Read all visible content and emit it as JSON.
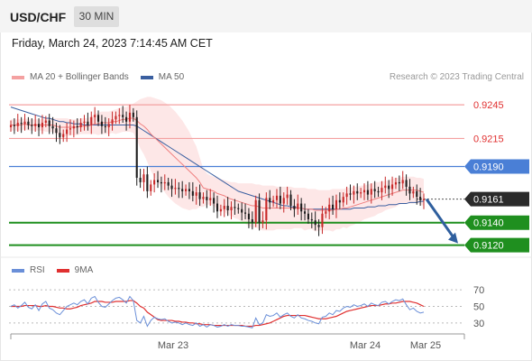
{
  "header": {
    "symbol": "USD/CHF",
    "timeframe": "30 MIN"
  },
  "datetime": "Friday, March 24, 2023 7:14:45 AM CET",
  "legend": {
    "ma_bollinger": "MA 20 + Bollinger Bands",
    "ma50": "MA 50",
    "credit": "Research © 2023 Trading Central"
  },
  "rsi_legend": {
    "rsi": "RSI",
    "ma9": "9MA"
  },
  "colors": {
    "resistance": "#f4a1a1",
    "pivot": "#4a7fd6",
    "support": "#1f8f1f",
    "current": "#2b2b2b",
    "arrow": "#2f5f9e",
    "bollinger_fill": "#fde3e3",
    "ma20": "#f08080",
    "ma50": "#3a5fa0",
    "rsi": "#6a8fd8",
    "rsi_ma": "#e03030"
  },
  "chart_data": [
    {
      "type": "candlestick",
      "title": "USD/CHF",
      "x_labels": [
        "Mar 23",
        "Mar 24",
        "Mar 25"
      ],
      "ylim": [
        0.911,
        0.9262
      ],
      "levels": [
        {
          "value": 0.9245,
          "label": "0.9245",
          "kind": "resistance"
        },
        {
          "value": 0.9215,
          "label": "0.9215",
          "kind": "resistance"
        },
        {
          "value": 0.919,
          "label": "0.9190",
          "kind": "pivot"
        },
        {
          "value": 0.9161,
          "label": "0.9161",
          "kind": "current"
        },
        {
          "value": 0.914,
          "label": "0.9140",
          "kind": "support"
        },
        {
          "value": 0.912,
          "label": "0.9120",
          "kind": "support"
        }
      ],
      "close": [
        0.9227,
        0.9226,
        0.9229,
        0.9228,
        0.923,
        0.9227,
        0.9226,
        0.9228,
        0.9225,
        0.9229,
        0.9231,
        0.9226,
        0.9224,
        0.922,
        0.9216,
        0.9219,
        0.9223,
        0.9224,
        0.9226,
        0.9225,
        0.9229,
        0.923,
        0.9227,
        0.9234,
        0.9236,
        0.923,
        0.9226,
        0.9225,
        0.9228,
        0.9232,
        0.9235,
        0.9236,
        0.9234,
        0.923,
        0.9238,
        0.9234,
        0.918,
        0.9176,
        0.9183,
        0.9168,
        0.9174,
        0.9178,
        0.9176,
        0.9175,
        0.9176,
        0.9173,
        0.917,
        0.9171,
        0.917,
        0.9168,
        0.917,
        0.9168,
        0.9164,
        0.9167,
        0.9161,
        0.9163,
        0.916,
        0.9162,
        0.9157,
        0.915,
        0.9152,
        0.9155,
        0.9151,
        0.9154,
        0.9153,
        0.9152,
        0.9149,
        0.9148,
        0.9143,
        0.914,
        0.916,
        0.914,
        0.9142,
        0.9162,
        0.9158,
        0.916,
        0.9164,
        0.9157,
        0.9162,
        0.9165,
        0.9155,
        0.9152,
        0.9157,
        0.915,
        0.9148,
        0.9143,
        0.9142,
        0.9138,
        0.9136,
        0.9148,
        0.915,
        0.9156,
        0.9152,
        0.916,
        0.9158,
        0.9163,
        0.9166,
        0.9165,
        0.9168,
        0.9166,
        0.9167,
        0.9169,
        0.9165,
        0.917,
        0.9168,
        0.9167,
        0.9171,
        0.9173,
        0.917,
        0.9174,
        0.9176,
        0.9175,
        0.9178,
        0.9172,
        0.9166,
        0.9168,
        0.9163,
        0.916,
        0.9161
      ],
      "ma20": [
        0.9227,
        0.9227,
        0.9227,
        0.9227,
        0.9228,
        0.9227,
        0.9227,
        0.9227,
        0.9227,
        0.9227,
        0.9227,
        0.9227,
        0.9227,
        0.9226,
        0.9225,
        0.9225,
        0.9225,
        0.9225,
        0.9225,
        0.9225,
        0.9226,
        0.9226,
        0.9226,
        0.9227,
        0.9228,
        0.9228,
        0.9229,
        0.9229,
        0.9229,
        0.923,
        0.923,
        0.9231,
        0.9232,
        0.9232,
        0.9233,
        0.9233,
        0.9231,
        0.9228,
        0.9226,
        0.9223,
        0.9219,
        0.9216,
        0.9213,
        0.921,
        0.9207,
        0.9204,
        0.9201,
        0.9198,
        0.9195,
        0.9192,
        0.9189,
        0.9186,
        0.9183,
        0.918,
        0.9176,
        0.9171,
        0.917,
        0.9169,
        0.9168,
        0.9166,
        0.9165,
        0.9164,
        0.9162,
        0.9161,
        0.916,
        0.9159,
        0.9158,
        0.9157,
        0.9156,
        0.9155,
        0.9155,
        0.9154,
        0.9153,
        0.9153,
        0.9153,
        0.9153,
        0.9153,
        0.9153,
        0.9153,
        0.9153,
        0.9153,
        0.9153,
        0.9153,
        0.9153,
        0.9152,
        0.9152,
        0.9152,
        0.9151,
        0.9151,
        0.9151,
        0.9151,
        0.9151,
        0.9151,
        0.9152,
        0.9152,
        0.9153,
        0.9153,
        0.9154,
        0.9155,
        0.9156,
        0.9157,
        0.9158,
        0.9159,
        0.916,
        0.9161,
        0.9162,
        0.9163,
        0.9164,
        0.9165,
        0.9166,
        0.9167,
        0.9168,
        0.9169,
        0.9169,
        0.9169,
        0.9169,
        0.9169,
        0.9168,
        0.9167
      ],
      "ma50": [
        0.9243,
        0.9242,
        0.9241,
        0.924,
        0.9239,
        0.9238,
        0.9237,
        0.9236,
        0.9235,
        0.9234,
        0.9233,
        0.9233,
        0.9232,
        0.9231,
        0.923,
        0.923,
        0.9229,
        0.9229,
        0.9228,
        0.9228,
        0.9228,
        0.9227,
        0.9227,
        0.9227,
        0.9227,
        0.9227,
        0.9227,
        0.9227,
        0.9227,
        0.9227,
        0.9227,
        0.9227,
        0.9227,
        0.9227,
        0.9227,
        0.9227,
        0.9226,
        0.9224,
        0.9222,
        0.922,
        0.9218,
        0.9216,
        0.9214,
        0.9212,
        0.921,
        0.9208,
        0.9206,
        0.9204,
        0.9202,
        0.92,
        0.9198,
        0.9196,
        0.9194,
        0.9192,
        0.919,
        0.9188,
        0.9186,
        0.9184,
        0.9182,
        0.918,
        0.9178,
        0.9176,
        0.9174,
        0.9172,
        0.917,
        0.9168,
        0.9167,
        0.9166,
        0.9165,
        0.9164,
        0.9163,
        0.9162,
        0.9161,
        0.916,
        0.9159,
        0.9158,
        0.9157,
        0.9156,
        0.9155,
        0.9155,
        0.9154,
        0.9154,
        0.9153,
        0.9153,
        0.9152,
        0.9152,
        0.9152,
        0.9152,
        0.9152,
        0.9152,
        0.9152,
        0.9152,
        0.9152,
        0.9152,
        0.9152,
        0.9152,
        0.9152,
        0.9152,
        0.9153,
        0.9153,
        0.9153,
        0.9153,
        0.9154,
        0.9154,
        0.9154,
        0.9155,
        0.9155,
        0.9155,
        0.9156,
        0.9156,
        0.9156,
        0.9157,
        0.9157,
        0.9157,
        0.9158,
        0.9158,
        0.9158,
        0.9159,
        0.9159
      ],
      "bollinger_upper": [
        0.9232,
        0.9232,
        0.9232,
        0.9232,
        0.9233,
        0.9232,
        0.9232,
        0.9232,
        0.9232,
        0.9232,
        0.9233,
        0.9233,
        0.9233,
        0.9233,
        0.9233,
        0.9233,
        0.9233,
        0.9232,
        0.9232,
        0.9232,
        0.9233,
        0.9233,
        0.9233,
        0.9235,
        0.9237,
        0.9238,
        0.9239,
        0.9239,
        0.9239,
        0.924,
        0.9241,
        0.9242,
        0.9243,
        0.9243,
        0.9245,
        0.9246,
        0.9248,
        0.925,
        0.9251,
        0.9252,
        0.9252,
        0.9251,
        0.925,
        0.9249,
        0.9247,
        0.9245,
        0.9242,
        0.9239,
        0.9235,
        0.9231,
        0.9226,
        0.9221,
        0.9214,
        0.9208,
        0.9198,
        0.9188,
        0.9184,
        0.9182,
        0.9181,
        0.918,
        0.9179,
        0.9178,
        0.9177,
        0.9176,
        0.9176,
        0.9175,
        0.9175,
        0.9175,
        0.9175,
        0.9175,
        0.9174,
        0.9174,
        0.9173,
        0.9173,
        0.9173,
        0.9173,
        0.9172,
        0.9172,
        0.9172,
        0.9172,
        0.9172,
        0.9171,
        0.9171,
        0.9171,
        0.9171,
        0.917,
        0.917,
        0.917,
        0.9169,
        0.9169,
        0.9169,
        0.9169,
        0.917,
        0.917,
        0.917,
        0.917,
        0.9171,
        0.9171,
        0.9172,
        0.9172,
        0.9173,
        0.9173,
        0.9174,
        0.9175,
        0.9176,
        0.9176,
        0.9177,
        0.9177,
        0.9178,
        0.9179,
        0.918,
        0.918,
        0.9181,
        0.9181,
        0.9181,
        0.9181,
        0.918,
        0.918,
        0.9179
      ],
      "bollinger_lower": [
        0.9222,
        0.9222,
        0.9222,
        0.9222,
        0.9223,
        0.9222,
        0.9222,
        0.9222,
        0.9222,
        0.9222,
        0.9221,
        0.9221,
        0.9221,
        0.9219,
        0.9217,
        0.9217,
        0.9217,
        0.9218,
        0.9218,
        0.9218,
        0.9219,
        0.9219,
        0.9219,
        0.9219,
        0.9219,
        0.9218,
        0.9219,
        0.9219,
        0.9219,
        0.922,
        0.9219,
        0.922,
        0.9221,
        0.9221,
        0.9221,
        0.922,
        0.9214,
        0.9206,
        0.9201,
        0.9194,
        0.9186,
        0.9181,
        0.9176,
        0.9171,
        0.9167,
        0.9163,
        0.916,
        0.9157,
        0.9155,
        0.9153,
        0.9152,
        0.9151,
        0.9152,
        0.9152,
        0.9154,
        0.9154,
        0.9156,
        0.9156,
        0.9155,
        0.9152,
        0.9151,
        0.915,
        0.9147,
        0.9146,
        0.9144,
        0.9143,
        0.9141,
        0.9139,
        0.9137,
        0.9135,
        0.9136,
        0.9134,
        0.9133,
        0.9133,
        0.9133,
        0.9133,
        0.9134,
        0.9134,
        0.9134,
        0.9134,
        0.9134,
        0.9135,
        0.9135,
        0.9135,
        0.9133,
        0.9134,
        0.9134,
        0.9132,
        0.9133,
        0.9133,
        0.9133,
        0.9133,
        0.9132,
        0.9134,
        0.9134,
        0.9136,
        0.9135,
        0.9137,
        0.9138,
        0.914,
        0.9141,
        0.9143,
        0.9144,
        0.9145,
        0.9146,
        0.9148,
        0.9149,
        0.9151,
        0.9152,
        0.9153,
        0.9154,
        0.9156,
        0.9157,
        0.9157,
        0.9157,
        0.9157,
        0.9158,
        0.9156,
        0.9155
      ]
    },
    {
      "type": "line",
      "title": "RSI",
      "ylim": [
        20,
        80
      ],
      "y_ticks": [
        70,
        50,
        30
      ],
      "series": [
        {
          "name": "RSI",
          "values": [
            50,
            52,
            48,
            51,
            55,
            49,
            47,
            52,
            45,
            53,
            56,
            48,
            46,
            42,
            40,
            45,
            50,
            52,
            54,
            52,
            56,
            58,
            53,
            60,
            62,
            55,
            50,
            49,
            53,
            57,
            60,
            61,
            58,
            54,
            62,
            57,
            33,
            30,
            38,
            26,
            33,
            37,
            35,
            34,
            35,
            32,
            30,
            31,
            30,
            28,
            30,
            28,
            27,
            30,
            26,
            28,
            25,
            28,
            27,
            25,
            26,
            28,
            26,
            28,
            27,
            27,
            26,
            26,
            25,
            24,
            36,
            28,
            30,
            40,
            38,
            39,
            42,
            37,
            40,
            42,
            38,
            36,
            40,
            36,
            35,
            33,
            32,
            30,
            29,
            37,
            38,
            42,
            40,
            45,
            44,
            48,
            50,
            49,
            52,
            50,
            51,
            53,
            50,
            54,
            52,
            51,
            55,
            56,
            53,
            56,
            58,
            57,
            59,
            52,
            46,
            48,
            44,
            42,
            43
          ]
        },
        {
          "name": "9MA",
          "values": [
            50,
            50,
            50,
            50,
            51,
            51,
            51,
            51,
            50,
            50,
            51,
            50,
            50,
            49,
            48,
            48,
            47,
            47,
            48,
            49,
            51,
            52,
            53,
            54,
            56,
            56,
            56,
            55,
            55,
            55,
            56,
            56,
            56,
            56,
            57,
            57,
            54,
            50,
            48,
            43,
            40,
            37,
            34,
            33,
            33,
            33,
            33,
            32,
            32,
            31,
            31,
            30,
            30,
            29,
            29,
            28,
            28,
            28,
            27,
            27,
            27,
            27,
            27,
            27,
            27,
            27,
            27,
            26,
            26,
            26,
            27,
            27,
            28,
            29,
            30,
            32,
            34,
            36,
            38,
            39,
            39,
            39,
            39,
            39,
            39,
            38,
            37,
            36,
            35,
            35,
            35,
            36,
            37,
            38,
            40,
            42,
            44,
            45,
            46,
            47,
            48,
            49,
            50,
            51,
            51,
            51,
            52,
            53,
            53,
            54,
            54,
            55,
            56,
            56,
            56,
            55,
            54,
            52,
            50
          ]
        }
      ]
    }
  ]
}
